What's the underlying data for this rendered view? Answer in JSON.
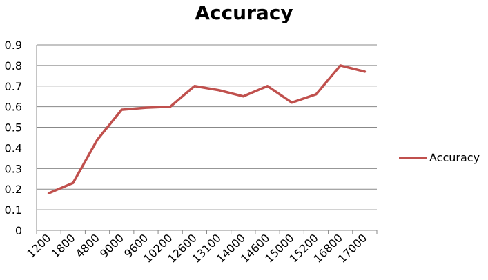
{
  "chart_data": {
    "type": "line",
    "title": "Accuracy",
    "xlabel": "",
    "ylabel": "",
    "categories": [
      "1200",
      "1800",
      "4800",
      "9000",
      "9600",
      "10200",
      "12600",
      "13100",
      "14000",
      "14600",
      "15000",
      "15200",
      "16800",
      "17000"
    ],
    "series": [
      {
        "name": "Accuracy",
        "values": [
          0.18,
          0.23,
          0.44,
          0.585,
          0.595,
          0.6,
          0.7,
          0.68,
          0.65,
          0.7,
          0.62,
          0.66,
          0.8,
          0.77
        ],
        "color": "#c0504d"
      }
    ],
    "ylim": [
      0,
      0.9
    ],
    "yticks": [
      "0",
      "0.1",
      "0.2",
      "0.3",
      "0.4",
      "0.5",
      "0.6",
      "0.7",
      "0.8",
      "0.9"
    ],
    "grid": true,
    "legend_position": "right"
  }
}
